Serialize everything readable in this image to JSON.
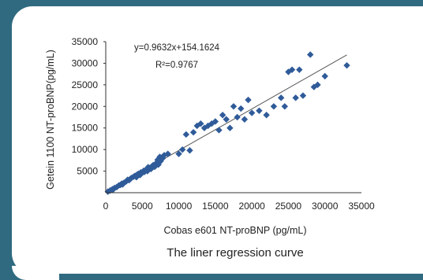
{
  "colors": {
    "background": "#2f6a80",
    "card": "#ffffff",
    "marker": "#2f5b99",
    "line": "#555555"
  },
  "caption": "The liner regression curve",
  "chart_data": {
    "type": "scatter",
    "xlabel": "Cobas e601 NT-proBNP (pg/mL)",
    "ylabel": "Getein 1100  NT-proBNP(pg/mL)",
    "xlim": [
      0,
      35000
    ],
    "ylim": [
      0,
      35000
    ],
    "xticks": [
      "0",
      "5000",
      "10000",
      "15000",
      "20000",
      "25000",
      "30000",
      "35000"
    ],
    "yticks": [
      "5000",
      "10000",
      "15000",
      "20000",
      "25000",
      "30000",
      "35000"
    ],
    "equation": "y=0.9632x+154.1624",
    "r_squared": "R²=0.9767",
    "regression": {
      "slope": 0.9632,
      "intercept": 154.1624,
      "x_range": [
        300,
        33000
      ]
    },
    "grid": false,
    "marker": "diamond",
    "points": [
      [
        300,
        250
      ],
      [
        600,
        500
      ],
      [
        900,
        800
      ],
      [
        1200,
        1100
      ],
      [
        1500,
        1300
      ],
      [
        1800,
        1700
      ],
      [
        2000,
        1800
      ],
      [
        2200,
        2100
      ],
      [
        2500,
        2300
      ],
      [
        2800,
        2600
      ],
      [
        3000,
        3000
      ],
      [
        3300,
        3100
      ],
      [
        3500,
        3400
      ],
      [
        3800,
        3700
      ],
      [
        4000,
        3900
      ],
      [
        4300,
        4200
      ],
      [
        4500,
        4400
      ],
      [
        4800,
        4700
      ],
      [
        5000,
        4600
      ],
      [
        5200,
        5100
      ],
      [
        5500,
        5300
      ],
      [
        5800,
        5900
      ],
      [
        6000,
        5700
      ],
      [
        6300,
        6100
      ],
      [
        6500,
        6400
      ],
      [
        6800,
        6600
      ],
      [
        7000,
        7000
      ],
      [
        7200,
        6500
      ],
      [
        7500,
        7300
      ],
      [
        7800,
        8000
      ],
      [
        8000,
        8700
      ],
      [
        8500,
        9000
      ],
      [
        1000,
        700
      ],
      [
        2300,
        1900
      ],
      [
        3200,
        2900
      ],
      [
        4200,
        3600
      ],
      [
        4700,
        4100
      ],
      [
        5300,
        4800
      ],
      [
        5700,
        5000
      ],
      [
        6200,
        5500
      ],
      [
        6700,
        6000
      ],
      [
        7100,
        7600
      ],
      [
        7400,
        8300
      ],
      [
        10000,
        9000
      ],
      [
        10500,
        10000
      ],
      [
        11000,
        13500
      ],
      [
        11500,
        9800
      ],
      [
        12000,
        14000
      ],
      [
        12500,
        15500
      ],
      [
        13000,
        16000
      ],
      [
        13500,
        15000
      ],
      [
        14000,
        15500
      ],
      [
        14500,
        16000
      ],
      [
        15000,
        16500
      ],
      [
        15500,
        14500
      ],
      [
        16000,
        18000
      ],
      [
        16500,
        17000
      ],
      [
        17000,
        15000
      ],
      [
        17500,
        20000
      ],
      [
        18000,
        17500
      ],
      [
        18500,
        19500
      ],
      [
        19000,
        17000
      ],
      [
        19500,
        21500
      ],
      [
        20000,
        18500
      ],
      [
        21000,
        19000
      ],
      [
        22000,
        18000
      ],
      [
        23000,
        20000
      ],
      [
        24000,
        22000
      ],
      [
        24500,
        20000
      ],
      [
        25000,
        28000
      ],
      [
        25500,
        28500
      ],
      [
        26000,
        22000
      ],
      [
        26500,
        28500
      ],
      [
        27000,
        22500
      ],
      [
        28000,
        32000
      ],
      [
        28500,
        24500
      ],
      [
        29000,
        25000
      ],
      [
        30000,
        27000
      ],
      [
        33000,
        29500
      ]
    ]
  }
}
